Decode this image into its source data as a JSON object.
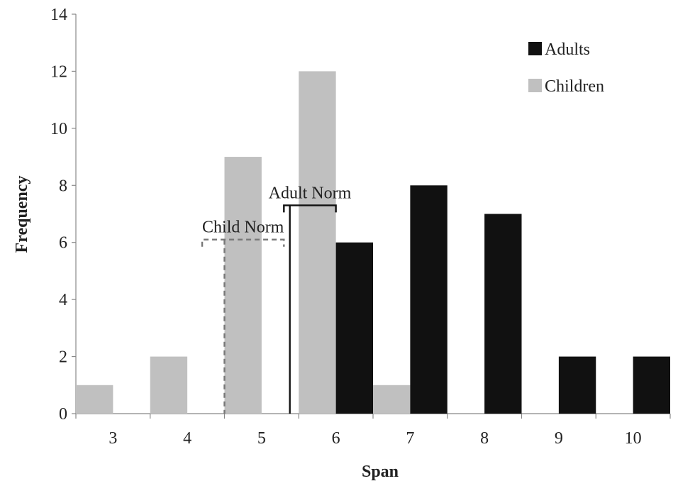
{
  "chart_data": {
    "type": "bar",
    "xlabel": "Span",
    "ylabel": "Frequency",
    "categories": [
      "3",
      "4",
      "5",
      "6",
      "7",
      "8",
      "9",
      "10"
    ],
    "ylim": [
      0,
      14
    ],
    "yticks": [
      0,
      2,
      4,
      6,
      8,
      10,
      12,
      14
    ],
    "grid": false,
    "legend_position": "top-right",
    "series": [
      {
        "name": "Children",
        "color": "#c0c0c0",
        "values": [
          1,
          2,
          9,
          12,
          1,
          0,
          0,
          0
        ]
      },
      {
        "name": "Adults",
        "color": "#111111",
        "values": [
          0,
          0,
          0,
          6,
          8,
          7,
          2,
          2
        ]
      }
    ],
    "legend_order": [
      "Adults",
      "Children"
    ],
    "annotations": [
      {
        "label": "Child Norm",
        "style": "dashed",
        "color": "#777777",
        "x": 4.5,
        "range": [
          4.2,
          5.3
        ],
        "y": 6.1
      },
      {
        "label": "Adult Norm",
        "style": "solid",
        "color": "#111111",
        "x": 5.38,
        "range": [
          5.3,
          6.0
        ],
        "y": 7.3
      }
    ]
  }
}
